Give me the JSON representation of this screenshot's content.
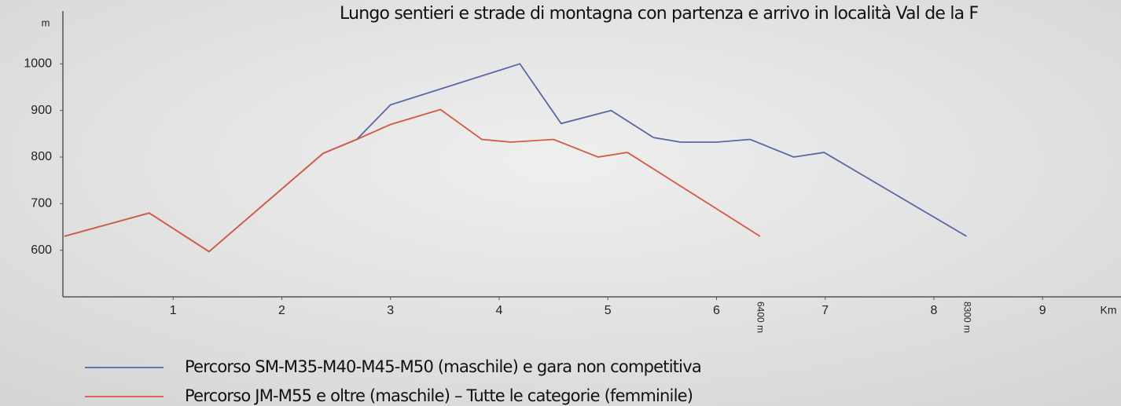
{
  "chart_data": {
    "type": "line",
    "title": "Lungo sentieri e strade di montagna con partenza e arrivo in località Val de la F",
    "y_label": "m",
    "x_label": "Km",
    "xlim": [
      0,
      9.7
    ],
    "ylim": [
      500,
      1100
    ],
    "xticks": [
      1,
      2,
      3,
      4,
      5,
      6,
      7,
      8,
      9
    ],
    "yticks": [
      600,
      700,
      800,
      900,
      1000
    ],
    "series": [
      {
        "name": "Percorso SM-M35-M40-M45-M50 (maschile) e gara non competitiva",
        "color": "#5a66a6",
        "x": [
          0,
          0.78,
          1.33,
          2.38,
          2.69,
          3.0,
          4.19,
          4.57,
          5.03,
          5.42,
          5.67,
          6.0,
          6.31,
          6.71,
          6.99,
          8.3
        ],
        "values": [
          630,
          680,
          597,
          808,
          838,
          912,
          1000,
          872,
          900,
          842,
          832,
          832,
          838,
          800,
          810,
          630
        ]
      },
      {
        "name": "Percorso JM-M55 e oltre (maschile) – Tutte le categorie (femminile)",
        "color": "#d65a42",
        "x": [
          0,
          0.78,
          1.33,
          2.38,
          2.69,
          3.0,
          3.46,
          3.84,
          4.11,
          4.5,
          4.91,
          5.18,
          6.4
        ],
        "values": [
          630,
          680,
          597,
          808,
          838,
          870,
          902,
          838,
          832,
          838,
          800,
          810,
          630
        ]
      }
    ],
    "annotations": [
      {
        "text": "6400 m",
        "x": 6.4
      },
      {
        "text": "8300 m",
        "x": 8.3
      }
    ]
  }
}
